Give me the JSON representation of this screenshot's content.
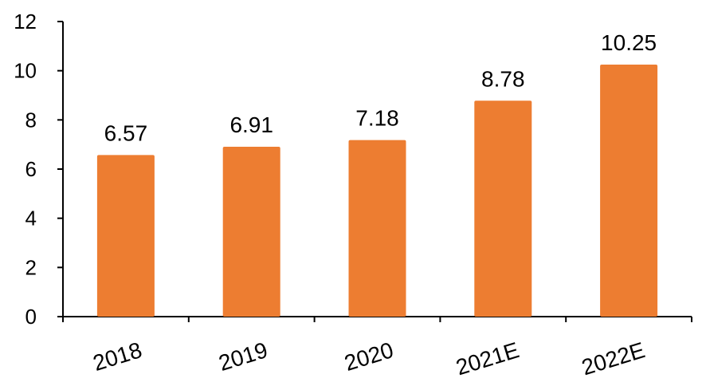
{
  "chart_data": {
    "type": "bar",
    "categories": [
      "2018",
      "2019",
      "2020",
      "2021E",
      "2022E"
    ],
    "values": [
      6.57,
      6.91,
      7.18,
      8.78,
      10.25
    ],
    "data_labels": [
      "6.57",
      "6.91",
      "7.18",
      "8.78",
      "10.25"
    ],
    "title": "",
    "xlabel": "",
    "ylabel": "",
    "ylim": [
      0,
      12
    ],
    "yticks": [
      0,
      2,
      4,
      6,
      8,
      10,
      12
    ],
    "ytick_labels": [
      "0",
      "2",
      "4",
      "6",
      "8",
      "10",
      "12"
    ],
    "grid": false,
    "legend": "none",
    "bar_color": "#ED7D31"
  }
}
